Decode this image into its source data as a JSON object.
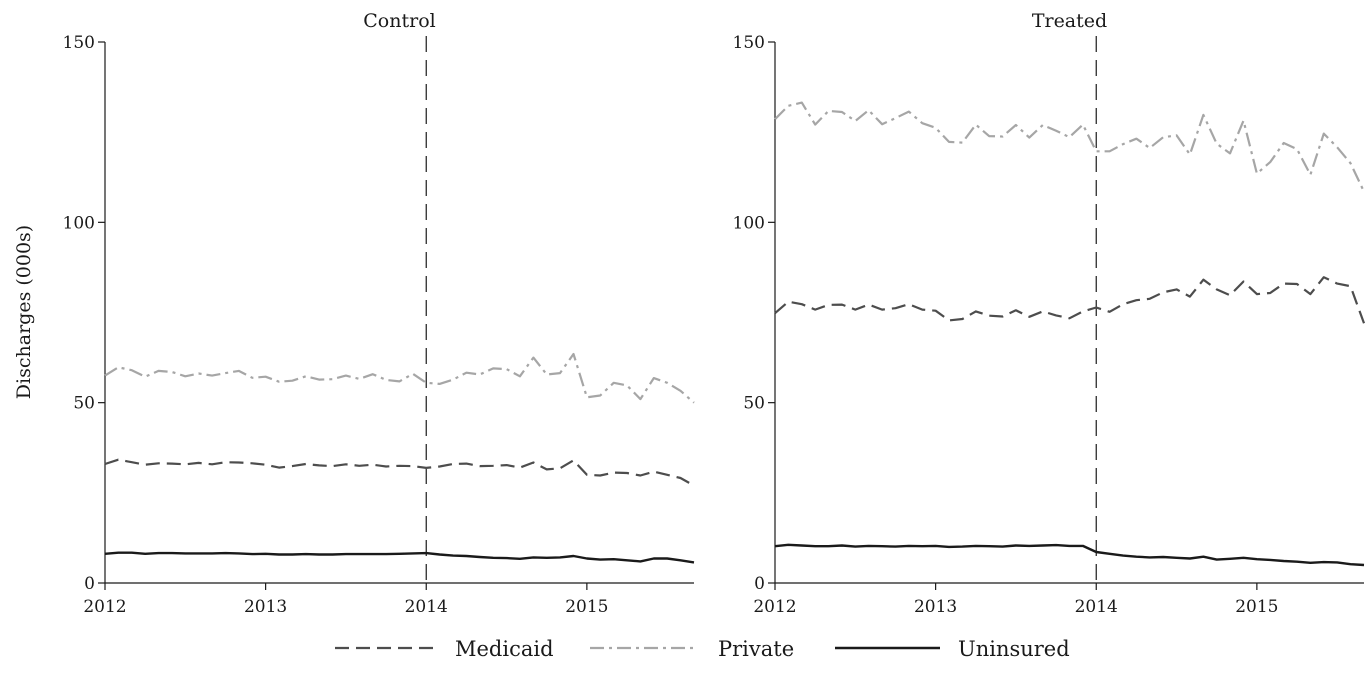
{
  "chart_data": {
    "type": "line",
    "ylabel": "Discharges (000s)",
    "xlim": [
      2012,
      2015.667
    ],
    "ylim": [
      0,
      150
    ],
    "x_ticks": [
      "2012",
      "2013",
      "2014",
      "2015"
    ],
    "y_ticks": [
      "0",
      "50",
      "100",
      "150"
    ],
    "reference_line_x": 2014,
    "grid": false,
    "legend_position": "bottom",
    "legend": [
      {
        "name": "Medicaid",
        "color": "#4d4d4d",
        "style": "dashed"
      },
      {
        "name": "Private",
        "color": "#a6a6a6",
        "style": "dash-dot"
      },
      {
        "name": "Uninsured",
        "color": "#1a1a1a",
        "style": "solid"
      }
    ],
    "x": [
      2012.0,
      2012.083,
      2012.167,
      2012.25,
      2012.333,
      2012.417,
      2012.5,
      2012.583,
      2012.667,
      2012.75,
      2012.833,
      2012.917,
      2013.0,
      2013.083,
      2013.167,
      2013.25,
      2013.333,
      2013.417,
      2013.5,
      2013.583,
      2013.667,
      2013.75,
      2013.833,
      2013.917,
      2014.0,
      2014.083,
      2014.167,
      2014.25,
      2014.333,
      2014.417,
      2014.5,
      2014.583,
      2014.667,
      2014.75,
      2014.833,
      2014.917,
      2015.0,
      2015.083,
      2015.167,
      2015.25,
      2015.333,
      2015.417,
      2015.5,
      2015.583,
      2015.667
    ],
    "panels": [
      {
        "title": "Control",
        "series": [
          {
            "name": "Medicaid",
            "values": [
              33,
              34.2,
              33.5,
              32.8,
              33.2,
              33.1,
              32.9,
              33.3,
              32.9,
              33.5,
              33.4,
              33.2,
              32.8,
              32,
              32.4,
              33,
              32.6,
              32.4,
              32.9,
              32.5,
              32.8,
              32.3,
              32.5,
              32.4,
              31.9,
              32.3,
              33,
              33.1,
              32.4,
              32.5,
              32.7,
              32,
              33.4,
              31.5,
              31.8,
              34,
              30,
              29.8,
              30.6,
              30.5,
              29.8,
              30.9,
              30,
              29.1,
              27
            ]
          },
          {
            "name": "Private",
            "values": [
              57.5,
              59.8,
              59,
              57.2,
              58.8,
              58.5,
              57.3,
              58.1,
              57.5,
              58.2,
              58.8,
              56.9,
              57.2,
              55.8,
              56.1,
              57.3,
              56.4,
              56.5,
              57.5,
              56.6,
              57.9,
              56.3,
              55.9,
              58,
              55.5,
              55.2,
              56.4,
              58.3,
              57.8,
              59.5,
              59.3,
              57.3,
              62.5,
              57.8,
              58.2,
              63.5,
              51.5,
              52,
              55.5,
              54.8,
              51,
              56.8,
              55.5,
              53.3,
              50
            ]
          },
          {
            "name": "Uninsured",
            "values": [
              8.1,
              8.4,
              8.4,
              8.1,
              8.3,
              8.3,
              8.2,
              8.2,
              8.2,
              8.3,
              8.2,
              8,
              8.1,
              7.9,
              7.9,
              8,
              7.9,
              7.9,
              8,
              8,
              8,
              8,
              8.1,
              8.2,
              8.3,
              7.9,
              7.6,
              7.5,
              7.2,
              7,
              6.9,
              6.7,
              7.1,
              7,
              7.1,
              7.5,
              6.8,
              6.5,
              6.6,
              6.3,
              6,
              6.8,
              6.8,
              6.3,
              5.7
            ]
          }
        ]
      },
      {
        "title": "Treated",
        "series": [
          {
            "name": "Medicaid",
            "values": [
              74.8,
              78,
              77.3,
              75.8,
              77.1,
              77.2,
              75.8,
              77.2,
              75.8,
              76.2,
              77.3,
              75.8,
              75.5,
              72.8,
              73.2,
              75.3,
              74.1,
              73.9,
              75.6,
              73.8,
              75.3,
              74.2,
              73.4,
              75.3,
              76.4,
              75.2,
              77.3,
              78.4,
              78.8,
              80.6,
              81.4,
              79.4,
              84.1,
              81.4,
              79.8,
              83.6,
              80.1,
              80.4,
              83,
              82.9,
              80.1,
              84.8,
              83,
              82.3,
              72
            ]
          },
          {
            "name": "Private",
            "values": [
              128.6,
              132.3,
              133.2,
              127.1,
              130.9,
              130.6,
              128.1,
              131.1,
              127.2,
              128.9,
              130.7,
              127.5,
              126.2,
              122.3,
              122.1,
              127.1,
              123.9,
              123.8,
              127,
              123.5,
              127,
              125.4,
              123.6,
              127.1,
              119.7,
              119.7,
              121.7,
              123.2,
              120.6,
              123.6,
              124.1,
              118.8,
              129.8,
              121.8,
              119.1,
              128.2,
              113.5,
              116.7,
              122,
              120.3,
              113.2,
              124.6,
              120.8,
              116.4,
              108.5
            ]
          },
          {
            "name": "Uninsured",
            "values": [
              10.2,
              10.6,
              10.4,
              10.2,
              10.2,
              10.4,
              10.1,
              10.3,
              10.2,
              10.1,
              10.3,
              10.2,
              10.3,
              10,
              10.1,
              10.3,
              10.2,
              10.1,
              10.4,
              10.3,
              10.4,
              10.5,
              10.3,
              10.3,
              8.6,
              8.1,
              7.6,
              7.3,
              7.1,
              7.2,
              7,
              6.8,
              7.3,
              6.5,
              6.7,
              7,
              6.6,
              6.4,
              6.1,
              5.9,
              5.6,
              5.8,
              5.7,
              5.2,
              5
            ]
          }
        ]
      }
    ]
  }
}
